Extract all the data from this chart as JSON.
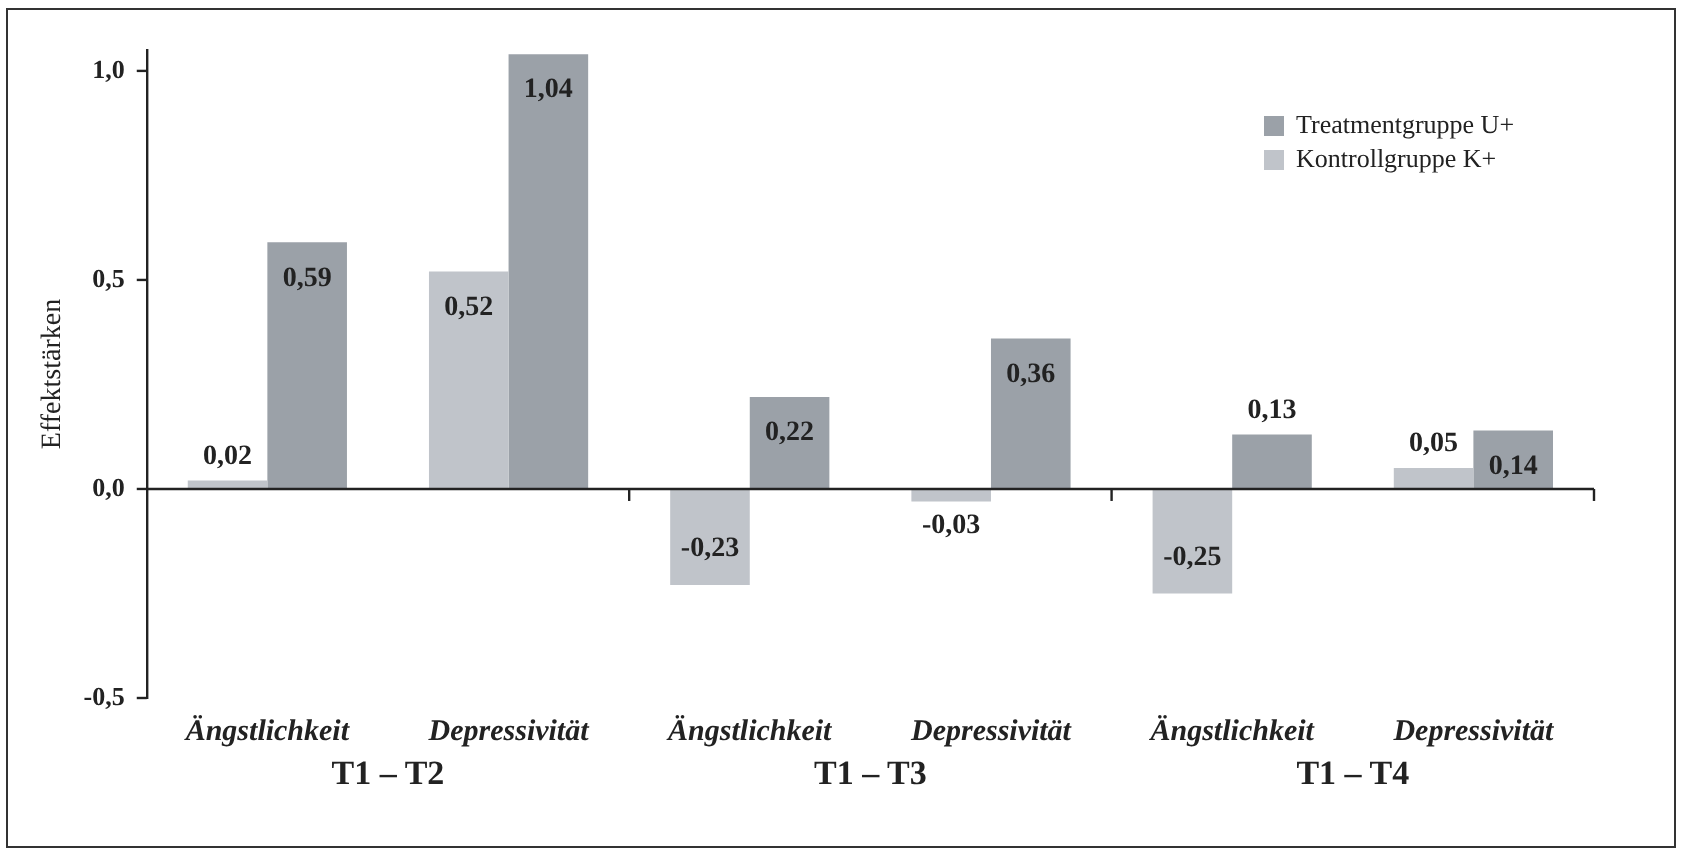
{
  "chart_data": {
    "type": "bar",
    "ylabel": "Effektstärken",
    "categories": [
      "Ängstlichkeit",
      "Depressivität",
      "Ängstlichkeit",
      "Depressivität",
      "Ängstlichkeit",
      "Depressivität"
    ],
    "series": [
      {
        "name": "Kontrollgruppe K+",
        "color": "#c0c4ca",
        "values": [
          0.02,
          0.52,
          -0.23,
          -0.03,
          -0.25,
          0.05
        ],
        "value_labels": [
          "0,02",
          "0,52",
          "-0,23",
          "-0,03",
          "-0,25",
          "0,05"
        ]
      },
      {
        "name": "Treatmentgruppe U+",
        "color": "#9ba1a8",
        "values": [
          0.59,
          1.04,
          0.22,
          0.36,
          0.13,
          0.14
        ],
        "value_labels": [
          "0,59",
          "1,04",
          "0,22",
          "0,36",
          "0,13",
          "0,14"
        ]
      }
    ],
    "annotations": [
      "T1 – T2",
      "T1 – T3",
      "T1 – T4"
    ],
    "ylim": [
      -0.5,
      1.05
    ],
    "yticks": [
      {
        "value": -0.5,
        "label": "-0,5"
      },
      {
        "value": 0,
        "label": "0,0"
      },
      {
        "value": 0.5,
        "label": "0,5"
      },
      {
        "value": 1,
        "label": "1,0"
      }
    ],
    "legend": "top right"
  }
}
